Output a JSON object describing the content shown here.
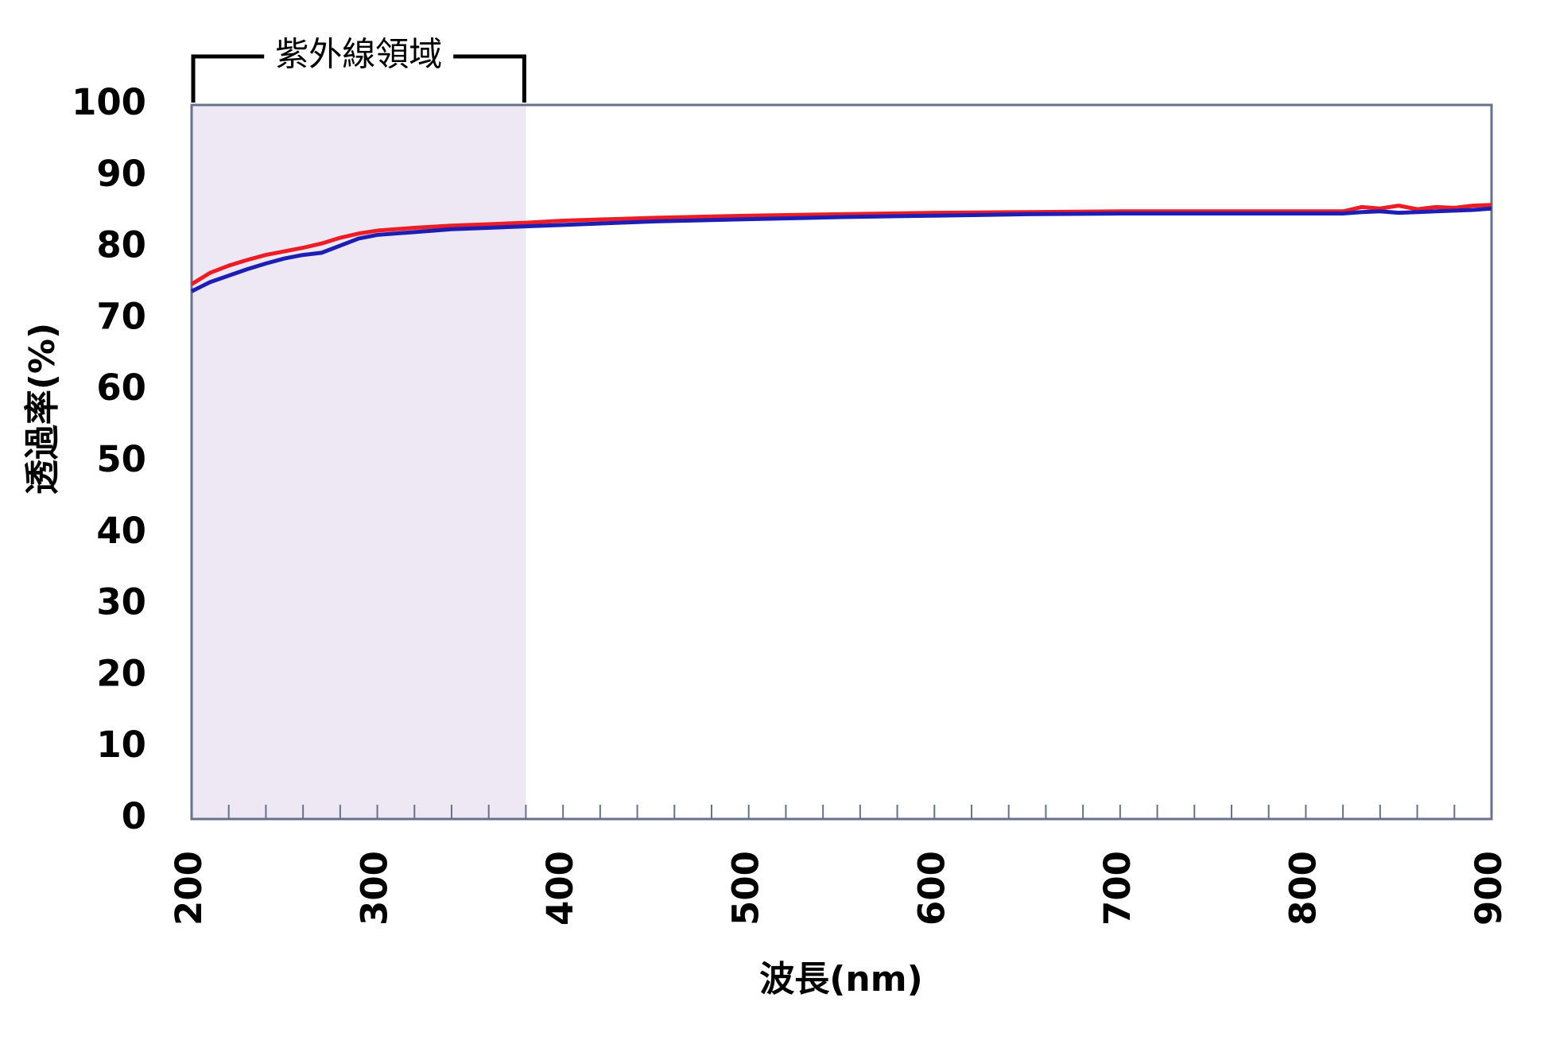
{
  "chart_data": {
    "type": "line",
    "x_label": "波長(nm)",
    "y_label": "透過率(%)",
    "x": [
      200,
      210,
      220,
      230,
      240,
      250,
      260,
      270,
      280,
      290,
      300,
      320,
      340,
      360,
      380,
      400,
      450,
      500,
      550,
      600,
      650,
      700,
      750,
      800,
      820,
      830,
      840,
      850,
      860,
      870,
      880,
      890,
      900
    ],
    "series": [
      {
        "color": "#ee1c25",
        "values": [
          74.9,
          76.5,
          77.5,
          78.3,
          79.0,
          79.5,
          80.0,
          80.6,
          81.4,
          82.0,
          82.4,
          82.8,
          83.1,
          83.3,
          83.5,
          83.8,
          84.2,
          84.5,
          84.7,
          84.9,
          85.0,
          85.1,
          85.1,
          85.1,
          85.1,
          85.7,
          85.5,
          85.9,
          85.4,
          85.7,
          85.6,
          85.9,
          86.0
        ]
      },
      {
        "color": "#1e1eb4",
        "values": [
          73.9,
          75.2,
          76.1,
          77.0,
          77.8,
          78.5,
          79.0,
          79.3,
          80.3,
          81.3,
          81.8,
          82.2,
          82.6,
          82.8,
          83.0,
          83.2,
          83.7,
          84.0,
          84.3,
          84.5,
          84.7,
          84.8,
          84.8,
          84.8,
          84.8,
          85.0,
          85.1,
          84.9,
          85.0,
          85.1,
          85.2,
          85.3,
          85.5
        ]
      }
    ],
    "xlim": [
      200,
      900
    ],
    "xticks": [
      200,
      300,
      400,
      500,
      600,
      700,
      800,
      900
    ],
    "xminorticks": [
      220,
      240,
      260,
      280,
      320,
      340,
      360,
      380,
      420,
      440,
      460,
      480,
      520,
      540,
      560,
      580,
      620,
      640,
      660,
      680,
      720,
      740,
      760,
      780,
      820,
      840,
      860,
      880
    ],
    "ylim": [
      0,
      100
    ],
    "yticks": [
      0,
      10,
      20,
      30,
      40,
      50,
      60,
      70,
      80,
      90,
      100
    ],
    "highlight": {
      "xlim": [
        200,
        380
      ],
      "label": "紫外線領域",
      "color": "#ede8f3"
    }
  }
}
